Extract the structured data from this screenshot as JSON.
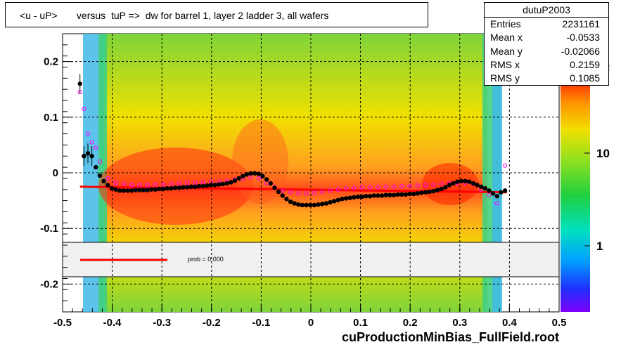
{
  "title": "<u - uP>       versus  tuP =>  dw for barrel 1, layer 2 ladder 3, all wafers",
  "footer": "cuProductionMinBias_FullField.root",
  "stats": {
    "name": "dutuP2003",
    "rows": [
      {
        "label": "Entries",
        "value": "2231161"
      },
      {
        "label": "Mean x",
        "value": "-0.0533"
      },
      {
        "label": "Mean y",
        "value": "-0.02066"
      },
      {
        "label": "RMS x",
        "value": "0.2159"
      },
      {
        "label": "RMS y",
        "value": "0.1085"
      }
    ]
  },
  "legend": {
    "prob_text": "prob = 0.000"
  },
  "colors": {
    "fit_line": "#ff0000",
    "profile_marker": "#000000",
    "open_marker": "#ff00ff",
    "legend_bg": "#f0f0f0"
  },
  "chart_data": {
    "type": "heatmap",
    "xlim": [
      -0.5,
      0.5
    ],
    "ylim": [
      -0.25,
      0.25
    ],
    "x_ticks": [
      "-0.5",
      "-0.4",
      "-0.3",
      "-0.2",
      "-0.1",
      "0",
      "0.1",
      "0.2",
      "0.3",
      "0.4",
      "0.5"
    ],
    "y_ticks": [
      "-0.2",
      "-0.1",
      "0",
      "0.1",
      "0.2"
    ],
    "color_scale_labels": [
      "1",
      "10"
    ],
    "colz_ticks": [
      "1",
      "10"
    ],
    "grid": true,
    "profile_points": {
      "x": [
        -0.465,
        -0.457,
        -0.449,
        -0.441,
        -0.433,
        -0.425,
        -0.417,
        -0.409,
        -0.401,
        -0.393,
        -0.385,
        -0.377,
        -0.369,
        -0.361,
        -0.353,
        -0.345,
        -0.337,
        -0.329,
        -0.321,
        -0.313,
        -0.305,
        -0.297,
        -0.289,
        -0.281,
        -0.273,
        -0.265,
        -0.257,
        -0.249,
        -0.241,
        -0.233,
        -0.225,
        -0.217,
        -0.209,
        -0.201,
        -0.193,
        -0.185,
        -0.177,
        -0.169,
        -0.161,
        -0.153,
        -0.145,
        -0.137,
        -0.129,
        -0.121,
        -0.113,
        -0.105,
        -0.097,
        -0.089,
        -0.081,
        -0.073,
        -0.065,
        -0.057,
        -0.049,
        -0.041,
        -0.033,
        -0.025,
        -0.017,
        -0.009,
        -0.001,
        0.007,
        0.015,
        0.023,
        0.031,
        0.039,
        0.047,
        0.055,
        0.063,
        0.071,
        0.079,
        0.087,
        0.095,
        0.103,
        0.111,
        0.119,
        0.127,
        0.135,
        0.143,
        0.151,
        0.159,
        0.167,
        0.175,
        0.183,
        0.191,
        0.199,
        0.207,
        0.215,
        0.223,
        0.231,
        0.239,
        0.247,
        0.255,
        0.263,
        0.271,
        0.279,
        0.287,
        0.295,
        0.303,
        0.311,
        0.319,
        0.327,
        0.335,
        0.343,
        0.351,
        0.359,
        0.367,
        0.375,
        0.383,
        0.391
      ],
      "y": [
        0.16,
        0.03,
        0.035,
        0.03,
        0.01,
        -0.005,
        -0.015,
        -0.022,
        -0.028,
        -0.03,
        -0.032,
        -0.032,
        -0.032,
        -0.032,
        -0.031,
        -0.031,
        -0.031,
        -0.031,
        -0.03,
        -0.03,
        -0.029,
        -0.029,
        -0.028,
        -0.028,
        -0.027,
        -0.027,
        -0.026,
        -0.026,
        -0.025,
        -0.025,
        -0.024,
        -0.024,
        -0.023,
        -0.022,
        -0.022,
        -0.021,
        -0.02,
        -0.019,
        -0.017,
        -0.014,
        -0.01,
        -0.006,
        -0.003,
        -0.001,
        -0.001,
        -0.002,
        -0.006,
        -0.012,
        -0.019,
        -0.027,
        -0.034,
        -0.041,
        -0.047,
        -0.052,
        -0.055,
        -0.057,
        -0.058,
        -0.058,
        -0.058,
        -0.058,
        -0.057,
        -0.056,
        -0.055,
        -0.053,
        -0.051,
        -0.049,
        -0.047,
        -0.046,
        -0.045,
        -0.044,
        -0.043,
        -0.043,
        -0.042,
        -0.042,
        -0.041,
        -0.041,
        -0.041,
        -0.04,
        -0.04,
        -0.04,
        -0.039,
        -0.039,
        -0.039,
        -0.038,
        -0.038,
        -0.037,
        -0.036,
        -0.035,
        -0.034,
        -0.033,
        -0.031,
        -0.029,
        -0.026,
        -0.022,
        -0.019,
        -0.016,
        -0.015,
        -0.015,
        -0.016,
        -0.019,
        -0.022,
        -0.025,
        -0.028,
        -0.032,
        -0.037,
        -0.042,
        -0.035,
        -0.032
      ]
    },
    "open_points": {
      "x": [
        -0.465,
        -0.457,
        -0.449,
        -0.441,
        -0.433,
        -0.425,
        -0.409,
        -0.393,
        -0.377,
        -0.361,
        -0.345,
        -0.329,
        -0.313,
        -0.297,
        -0.281,
        -0.265,
        -0.249,
        -0.233,
        -0.217,
        -0.201,
        -0.185,
        -0.169,
        -0.153,
        -0.137,
        -0.121,
        -0.105,
        -0.089,
        -0.073,
        -0.057,
        -0.041,
        -0.025,
        -0.009,
        0.007,
        0.023,
        0.039,
        0.055,
        0.071,
        0.087,
        0.103,
        0.119,
        0.135,
        0.151,
        0.167,
        0.183,
        0.199,
        0.215,
        0.231,
        0.247,
        0.263,
        0.279,
        0.295,
        0.311,
        0.327,
        0.343,
        0.359,
        0.375,
        0.391
      ],
      "y": [
        0.145,
        0.115,
        0.07,
        0.055,
        0.045,
        0.02,
        -0.01,
        -0.018,
        -0.02,
        -0.022,
        -0.022,
        -0.022,
        -0.021,
        -0.021,
        -0.02,
        -0.019,
        -0.018,
        -0.018,
        -0.017,
        -0.016,
        -0.016,
        -0.015,
        -0.012,
        -0.01,
        -0.008,
        -0.01,
        -0.018,
        -0.026,
        -0.032,
        -0.035,
        -0.037,
        -0.037,
        -0.036,
        -0.034,
        -0.032,
        -0.03,
        -0.028,
        -0.027,
        -0.026,
        -0.026,
        -0.026,
        -0.025,
        -0.025,
        -0.024,
        -0.024,
        -0.023,
        -0.022,
        -0.021,
        -0.02,
        -0.019,
        -0.018,
        -0.018,
        -0.02,
        -0.03,
        -0.04,
        -0.055,
        0.013
      ]
    },
    "fit_line": {
      "x": [
        -0.465,
        0.395
      ],
      "y": [
        -0.025,
        -0.035
      ]
    }
  }
}
